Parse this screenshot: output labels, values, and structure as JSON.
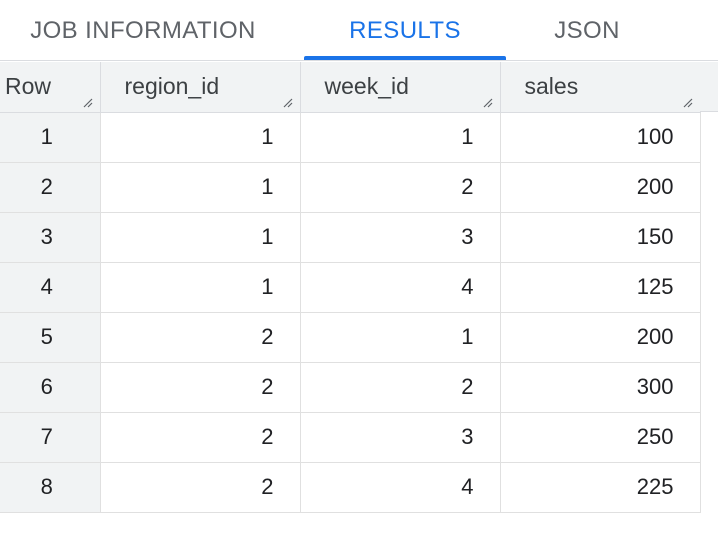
{
  "tabs": [
    {
      "label": "JOB INFORMATION"
    },
    {
      "label": "RESULTS"
    },
    {
      "label": "JSON"
    }
  ],
  "active_tab": "RESULTS",
  "accent_color": "#1a73e8",
  "table": {
    "columns": [
      "Row",
      "region_id",
      "week_id",
      "sales"
    ],
    "rows": [
      {
        "row": "1",
        "region_id": "1",
        "week_id": "1",
        "sales": "100"
      },
      {
        "row": "2",
        "region_id": "1",
        "week_id": "2",
        "sales": "200"
      },
      {
        "row": "3",
        "region_id": "1",
        "week_id": "3",
        "sales": "150"
      },
      {
        "row": "4",
        "region_id": "1",
        "week_id": "4",
        "sales": "125"
      },
      {
        "row": "5",
        "region_id": "2",
        "week_id": "1",
        "sales": "200"
      },
      {
        "row": "6",
        "region_id": "2",
        "week_id": "2",
        "sales": "300"
      },
      {
        "row": "7",
        "region_id": "2",
        "week_id": "3",
        "sales": "250"
      },
      {
        "row": "8",
        "region_id": "2",
        "week_id": "4",
        "sales": "225"
      }
    ]
  }
}
